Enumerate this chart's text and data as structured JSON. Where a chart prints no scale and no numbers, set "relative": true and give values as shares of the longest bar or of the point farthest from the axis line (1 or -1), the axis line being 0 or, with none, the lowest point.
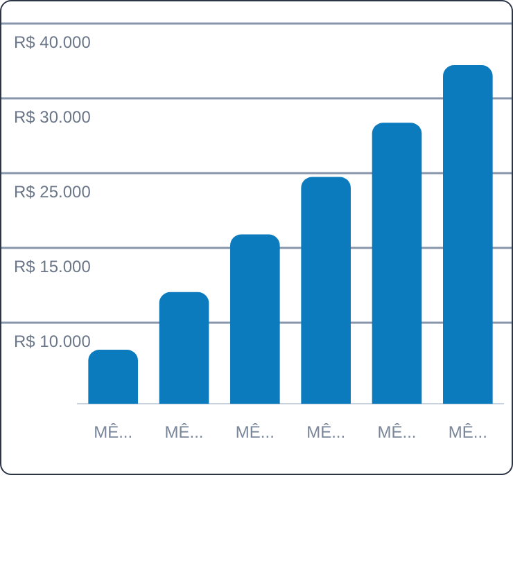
{
  "chart_data": {
    "type": "bar",
    "relative": true,
    "categories": [
      "MÊ...",
      "MÊ...",
      "MÊ...",
      "MÊ...",
      "MÊ...",
      "MÊ..."
    ],
    "values": [
      0.16,
      0.33,
      0.5,
      0.67,
      0.83,
      1
    ],
    "color": "#0b7bbd",
    "annotations": [
      "R$ 40.000",
      "R$ 30.000",
      "R$ 25.000",
      "R$ 15.000",
      "R$ 10.000"
    ]
  }
}
